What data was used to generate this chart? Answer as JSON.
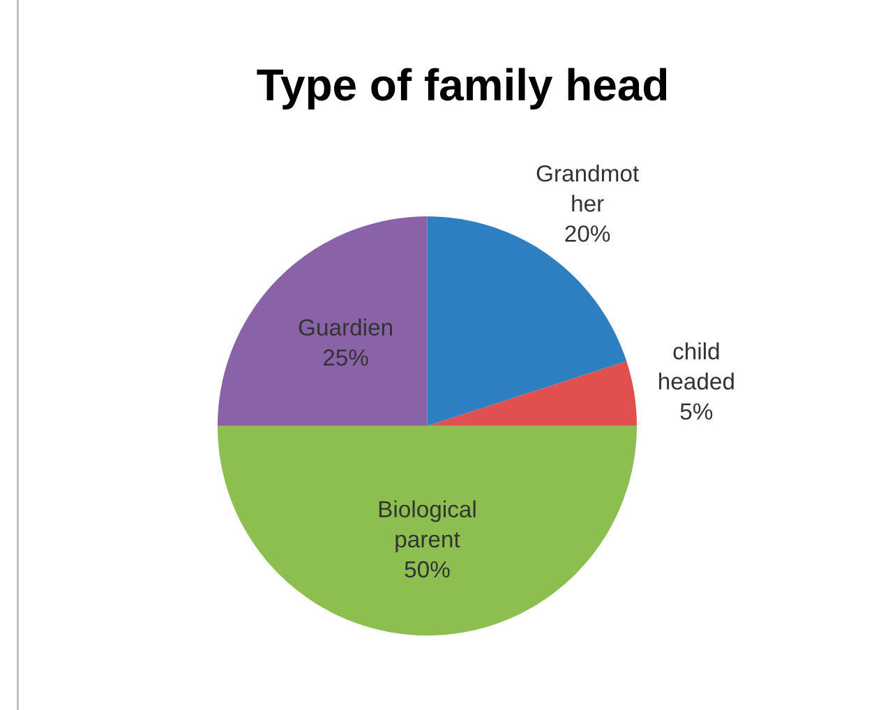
{
  "chart_data": {
    "type": "pie",
    "title": "Type of family head",
    "categories": [
      "Grandmot\nher",
      "child\nheaded",
      "Biological\nparent",
      "Guardien"
    ],
    "values": [
      20,
      5,
      50,
      25
    ],
    "colors": [
      "#2e7fc2",
      "#e0504e",
      "#8cbf4f",
      "#8a62a8"
    ],
    "value_labels": [
      "20%",
      "5%",
      "50%",
      "25%"
    ],
    "legend": false
  }
}
